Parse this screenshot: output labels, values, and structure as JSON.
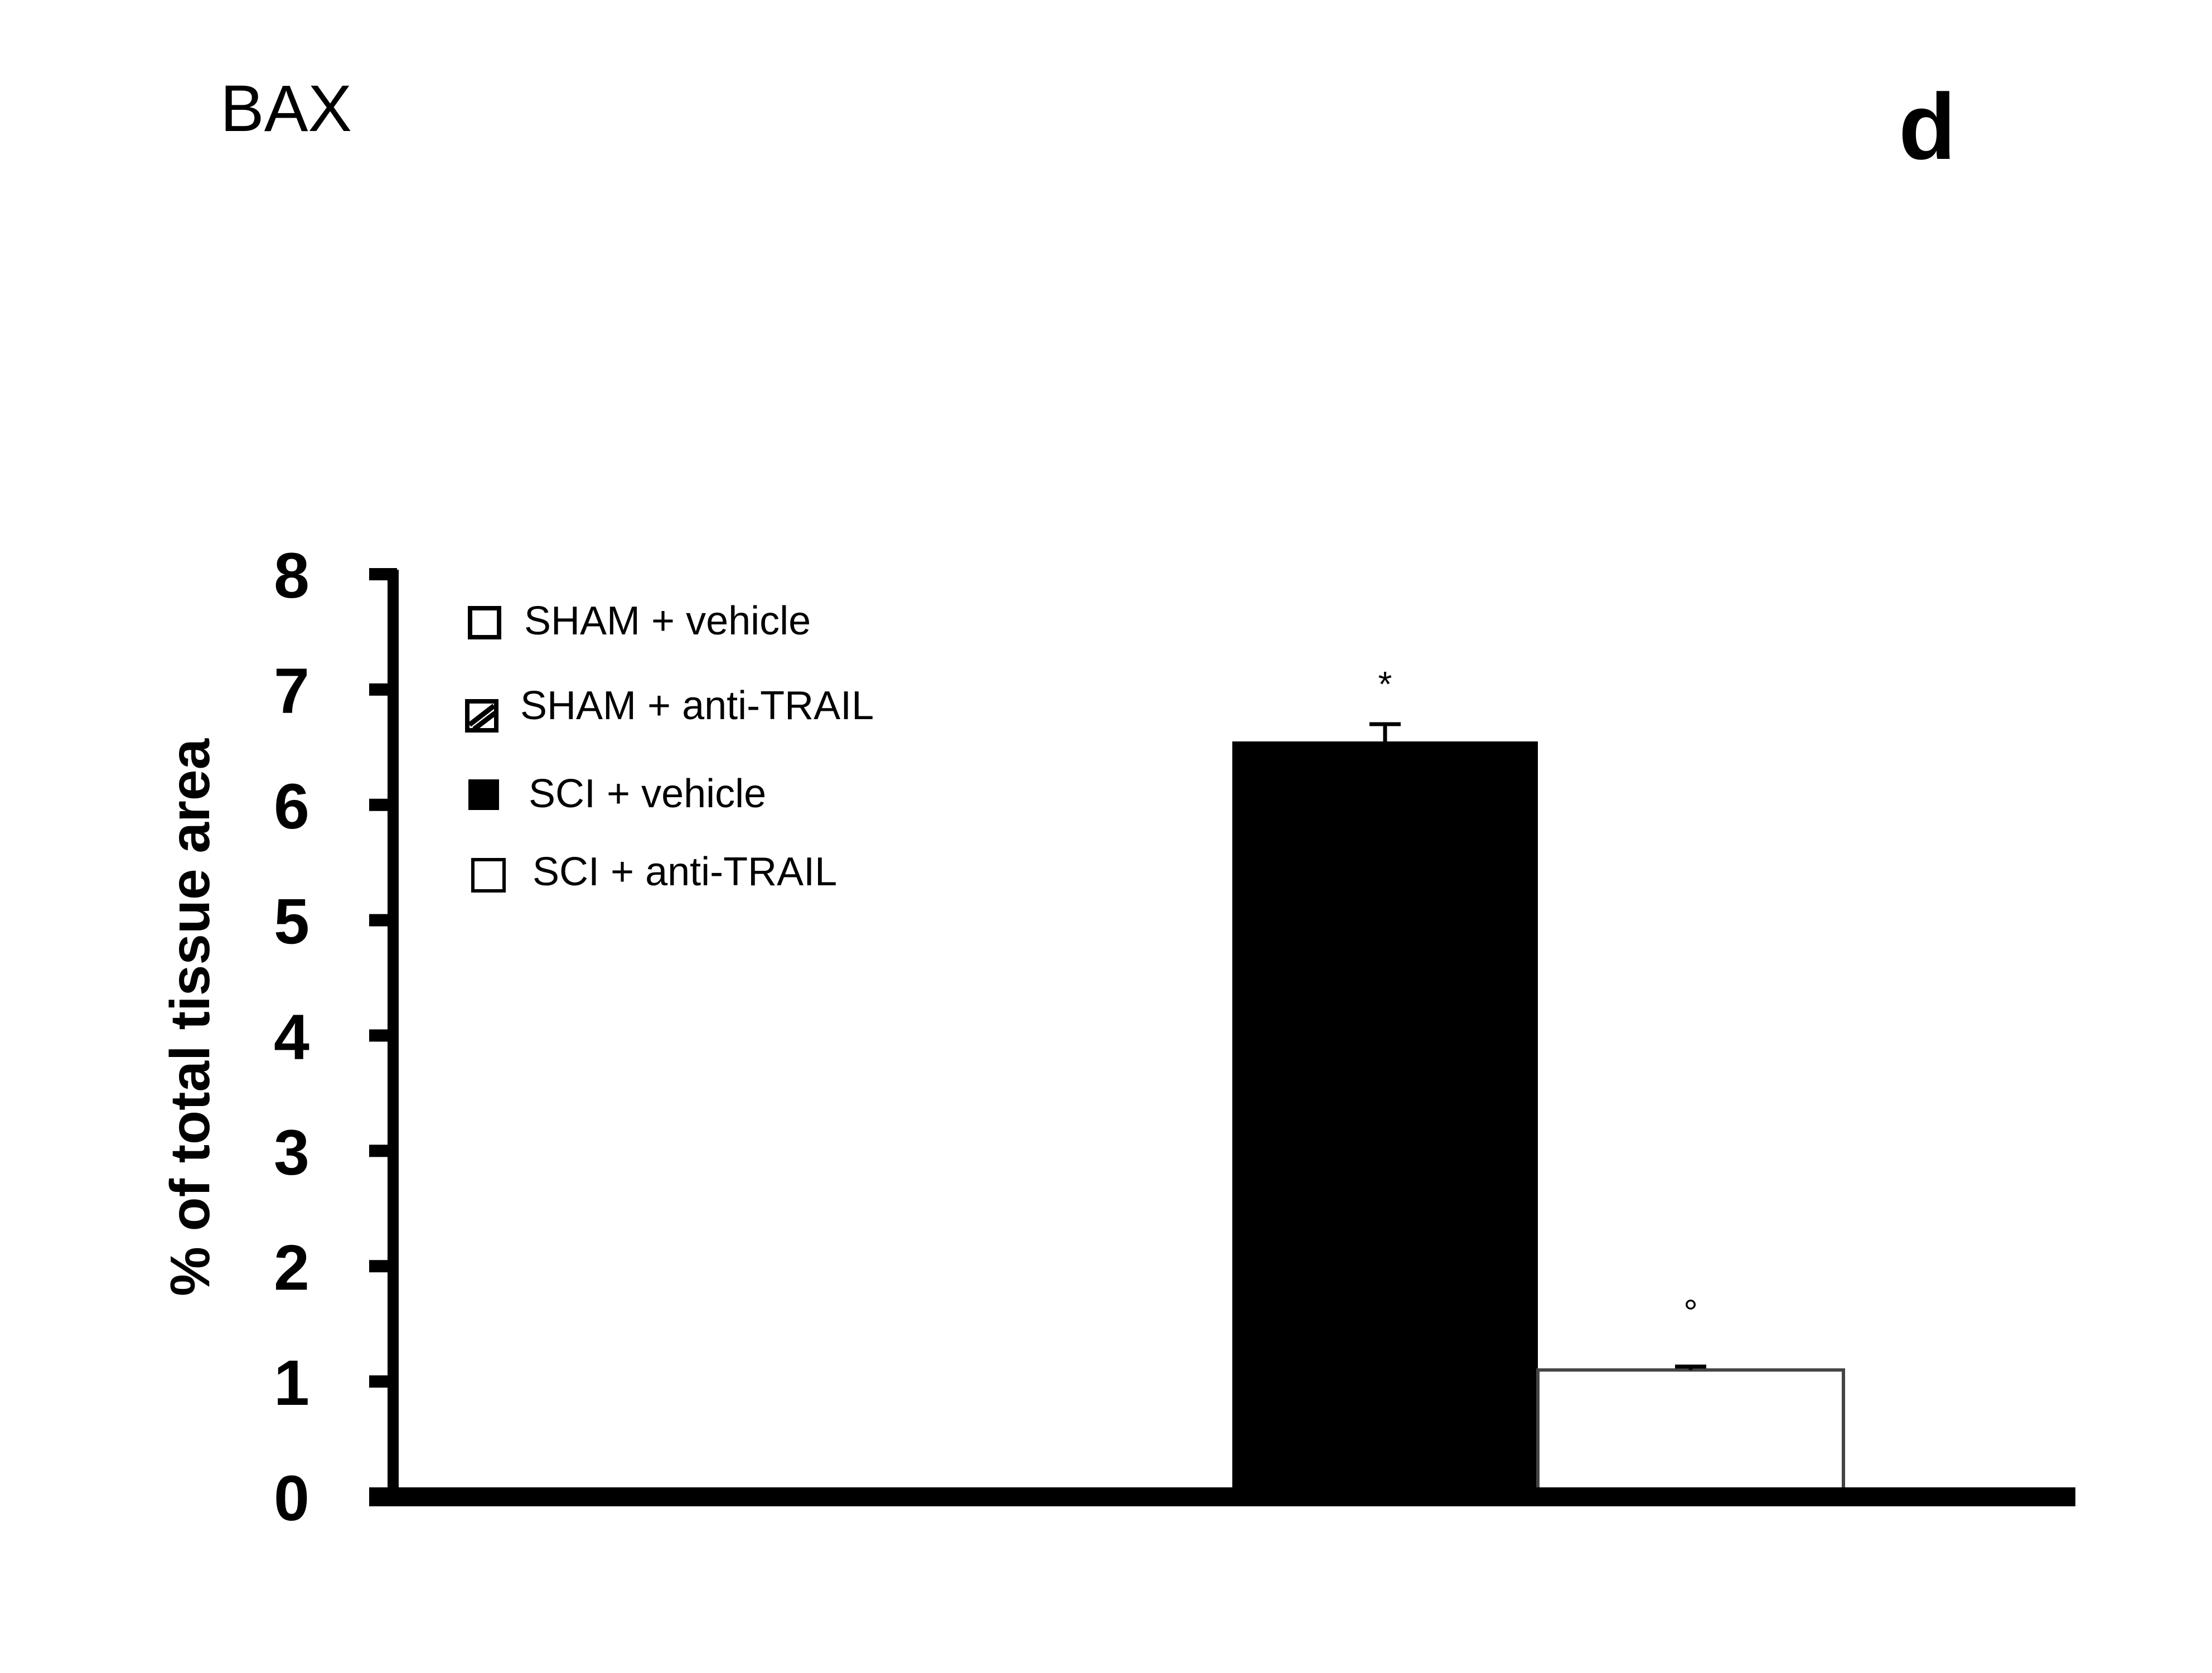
{
  "chart_data": {
    "type": "bar",
    "title": "BAX",
    "panel_label": "d",
    "xlabel": "",
    "ylabel": "% of total tissue area",
    "ylim": [
      0,
      8
    ],
    "yticks": [
      "0",
      "1",
      "2",
      "3",
      "4",
      "5",
      "6",
      "7",
      "8"
    ],
    "categories": [
      "SHAM + vehicle",
      "SHAM + anti-TRAIL",
      "SCI + vehicle",
      "SCI + anti-TRAIL"
    ],
    "values": [
      0,
      0,
      6.55,
      1.1
    ],
    "errors": [
      0,
      0,
      0.15,
      0.03
    ],
    "annotations": [
      "",
      "",
      "*",
      "°"
    ],
    "fills": [
      "#ffffff",
      "#ffffff",
      "#000000",
      "#ffffff"
    ],
    "legend": {
      "position": "top-left",
      "items": [
        {
          "label": "SHAM + vehicle",
          "symbol": "open-square-icon"
        },
        {
          "label": "SHAM + anti-TRAIL",
          "symbol": "hatched-square-icon"
        },
        {
          "label": "SCI + vehicle",
          "symbol": "filled-square-icon"
        },
        {
          "label": "SCI + anti-TRAIL",
          "symbol": "open-square-icon"
        }
      ]
    },
    "grid": false
  }
}
